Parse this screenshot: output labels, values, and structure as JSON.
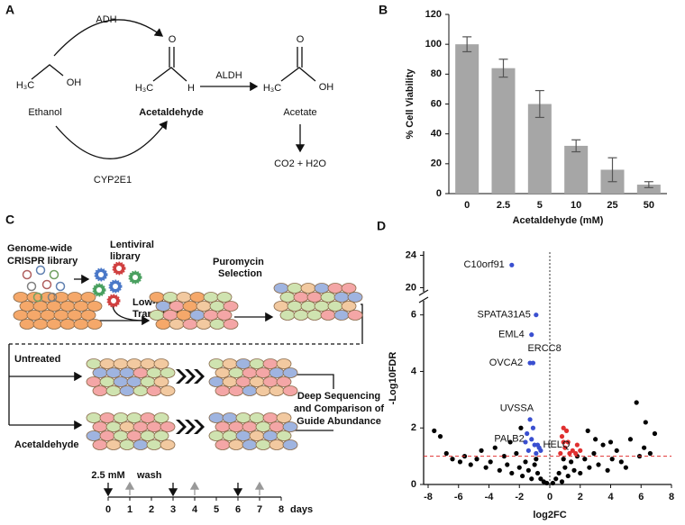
{
  "panel_labels": [
    "A",
    "B",
    "C",
    "D"
  ],
  "pathway": {
    "enzymes": {
      "adh": "ADH",
      "cyp": "CYP2E1",
      "aldh": "ALDH"
    },
    "ethanol": {
      "name": "Ethanol",
      "atoms": [
        "H₃C",
        "OH"
      ]
    },
    "acetaldehyde": {
      "name": "Acetaldehyde",
      "atoms": [
        "H₃C",
        "O",
        "H"
      ]
    },
    "acetate": {
      "name": "Acetate",
      "atoms": [
        "H₃C",
        "O",
        "OH"
      ]
    },
    "products": "CO2 + H2O"
  },
  "screen": {
    "library": [
      "Genome-wide",
      "CRISPR library"
    ],
    "virus": [
      "Lentiviral",
      "library"
    ],
    "transduction": [
      "Low-MOI",
      "Transduction"
    ],
    "selection": [
      "Puromycin",
      "Selection"
    ],
    "arms": [
      "Untreated",
      "Acetaldehyde"
    ],
    "readout": [
      "Deep Sequencing",
      "and Comparison of",
      "Guide Abundance"
    ],
    "timeline": {
      "dose": "2.5 mM",
      "wash": "wash",
      "unit": "days",
      "ticks": [
        0,
        1,
        2,
        3,
        4,
        5,
        6,
        7,
        8
      ],
      "treatments": [
        0,
        3,
        6
      ],
      "washes": [
        1,
        4,
        7
      ]
    }
  },
  "chart_data": [
    {
      "type": "bar",
      "ylabel": "% Cell Viability",
      "xlabel": "Acetaldehyde (mM)",
      "categories": [
        "0",
        "2.5",
        "5",
        "10",
        "25",
        "50"
      ],
      "values": [
        100,
        84,
        60,
        32,
        16,
        6
      ],
      "errors": [
        5,
        6,
        9,
        4,
        8,
        2
      ],
      "color": "#a6a6a6",
      "ylim": [
        0,
        120
      ],
      "yticks": [
        0,
        20,
        40,
        60,
        80,
        100,
        120
      ]
    },
    {
      "type": "scatter",
      "xlabel": "log2FC",
      "ylabel": "-Log10FDR",
      "xlim": [
        -8,
        8
      ],
      "ylim": [
        0,
        24.5
      ],
      "ybreak": [
        6.5,
        19.5
      ],
      "xticks": [
        -8,
        -6,
        -4,
        -2,
        0,
        2,
        4,
        6,
        8
      ],
      "yticks": [
        0,
        2,
        4,
        6,
        20,
        24
      ],
      "hline": 1,
      "vline": 0,
      "series": [
        {
          "color": "#000000",
          "x": [
            -7.6,
            -7.2,
            -6.8,
            -6.4,
            -5.9,
            -5.6,
            -5.2,
            -4.8,
            -4.5,
            -4.2,
            -3.9,
            -3.6,
            -3.3,
            -3.0,
            -2.8,
            -2.5,
            -2.2,
            -2.0,
            -1.8,
            -1.6,
            -1.4,
            -1.2,
            -1.0,
            -0.8,
            -0.6,
            -0.4,
            -0.2,
            0.2,
            0.4,
            0.6,
            0.8,
            1.0,
            1.2,
            1.4,
            1.6,
            1.8,
            2.0,
            2.3,
            2.6,
            2.9,
            3.2,
            3.5,
            3.8,
            4.1,
            4.4,
            4.7,
            5.0,
            5.3,
            5.7,
            5.9,
            6.2,
            6.6,
            6.9,
            -1.9,
            2.5,
            3.0,
            0.9,
            -0.9,
            -2.6,
            4.0,
            6.3
          ],
          "y": [
            1.9,
            1.7,
            1.1,
            0.9,
            0.8,
            1.0,
            0.7,
            0.9,
            1.2,
            0.6,
            0.8,
            1.3,
            0.5,
            1.0,
            0.7,
            0.4,
            1.1,
            0.6,
            0.3,
            0.8,
            0.5,
            0.2,
            0.7,
            0.4,
            0.2,
            0.1,
            0.05,
            0.05,
            0.2,
            0.4,
            0.1,
            0.6,
            0.3,
            0.8,
            0.5,
            1.0,
            0.4,
            0.9,
            0.6,
            1.1,
            0.7,
            1.4,
            0.5,
            0.9,
            1.2,
            0.8,
            0.6,
            1.6,
            2.9,
            1.0,
            1.3,
            1.1,
            1.8,
            2.0,
            1.9,
            1.6,
            0.9,
            0.9,
            1.5,
            1.5,
            2.2
          ]
        },
        {
          "color": "#3a4fd0",
          "x": [
            -1.1,
            -1.5,
            -1.0,
            -0.7,
            -1.4,
            -0.9,
            -1.6,
            -0.6
          ],
          "y": [
            2.0,
            1.8,
            1.4,
            1.3,
            1.2,
            1.1,
            1.5,
            1.2
          ]
        },
        {
          "color": "#e03030",
          "x": [
            0.9,
            1.1,
            0.8,
            1.2,
            1.0,
            1.5,
            0.7,
            1.3,
            1.8,
            0.9,
            1.7,
            2.0
          ],
          "y": [
            2.0,
            1.9,
            1.7,
            1.5,
            1.3,
            1.2,
            1.1,
            1.1,
            1.4,
            1.5,
            1.1,
            1.2
          ]
        }
      ],
      "annotations": [
        {
          "text": "C10orf91",
          "x": -2.5,
          "y": 22.8
        },
        {
          "text": "SPATA31A5",
          "x": -0.9,
          "y": 6.0
        },
        {
          "text": "EML4",
          "x": -1.2,
          "y": 5.3
        },
        {
          "text": "ERCC8",
          "x": -1.1,
          "y": 4.3
        },
        {
          "text": "OVCA2",
          "x": -1.3,
          "y": 4.3
        },
        {
          "text": "UVSSA",
          "x": -1.3,
          "y": 2.3
        },
        {
          "text": "PALB2",
          "x": -1.2,
          "y": 1.6
        },
        {
          "text": "HELQ",
          "x": -0.8,
          "y": 1.4
        }
      ]
    }
  ]
}
